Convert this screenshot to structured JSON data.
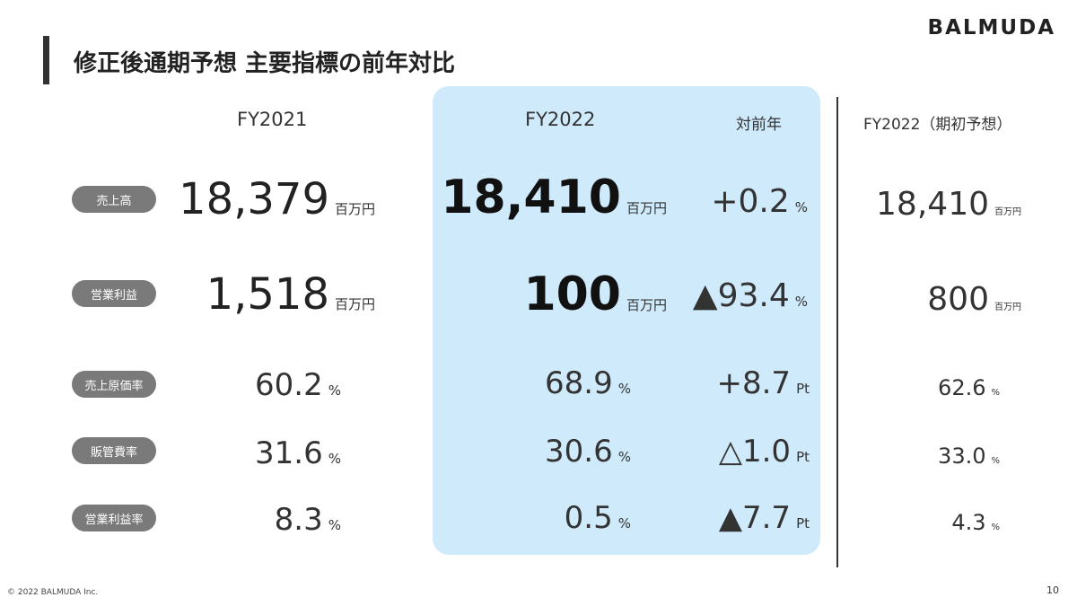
{
  "brand": "BALMUDA",
  "title": "修正後通期予想 主要指標の前年対比",
  "columns": {
    "fy2021": "FY2021",
    "fy2022": "FY2022",
    "yoy": "対前年",
    "fy2022_initial": "FY2022（期初予想）"
  },
  "rows": [
    {
      "label": "売上高",
      "fy2021": {
        "value": "18,379",
        "unit": "百万円"
      },
      "fy2022": {
        "value": "18,410",
        "unit": "百万円"
      },
      "yoy": {
        "value": "+0.2",
        "unit": "%"
      },
      "initial": {
        "value": "18,410",
        "unit": "百万円"
      }
    },
    {
      "label": "営業利益",
      "fy2021": {
        "value": "1,518",
        "unit": "百万円"
      },
      "fy2022": {
        "value": "100",
        "unit": "百万円"
      },
      "yoy": {
        "value": "▲93.4",
        "unit": "%"
      },
      "initial": {
        "value": "800",
        "unit": "百万円"
      }
    },
    {
      "label": "売上原価率",
      "fy2021": {
        "value": "60.2",
        "unit": "%"
      },
      "fy2022": {
        "value": "68.9",
        "unit": "%"
      },
      "yoy": {
        "value": "+8.7",
        "unit": "Pt"
      },
      "initial": {
        "value": "62.6",
        "unit": "%"
      }
    },
    {
      "label": "販管費率",
      "fy2021": {
        "value": "31.6",
        "unit": "%"
      },
      "fy2022": {
        "value": "30.6",
        "unit": "%"
      },
      "yoy": {
        "value": "△1.0",
        "unit": "Pt"
      },
      "initial": {
        "value": "33.0",
        "unit": "%"
      }
    },
    {
      "label": "営業利益率",
      "fy2021": {
        "value": "8.3",
        "unit": "%"
      },
      "fy2022": {
        "value": "0.5",
        "unit": "%"
      },
      "yoy": {
        "value": "▲7.7",
        "unit": "Pt"
      },
      "initial": {
        "value": "4.3",
        "unit": "%"
      }
    }
  ],
  "footer": {
    "copyright": "© 2022 BALMUDA Inc.",
    "page": "10"
  }
}
